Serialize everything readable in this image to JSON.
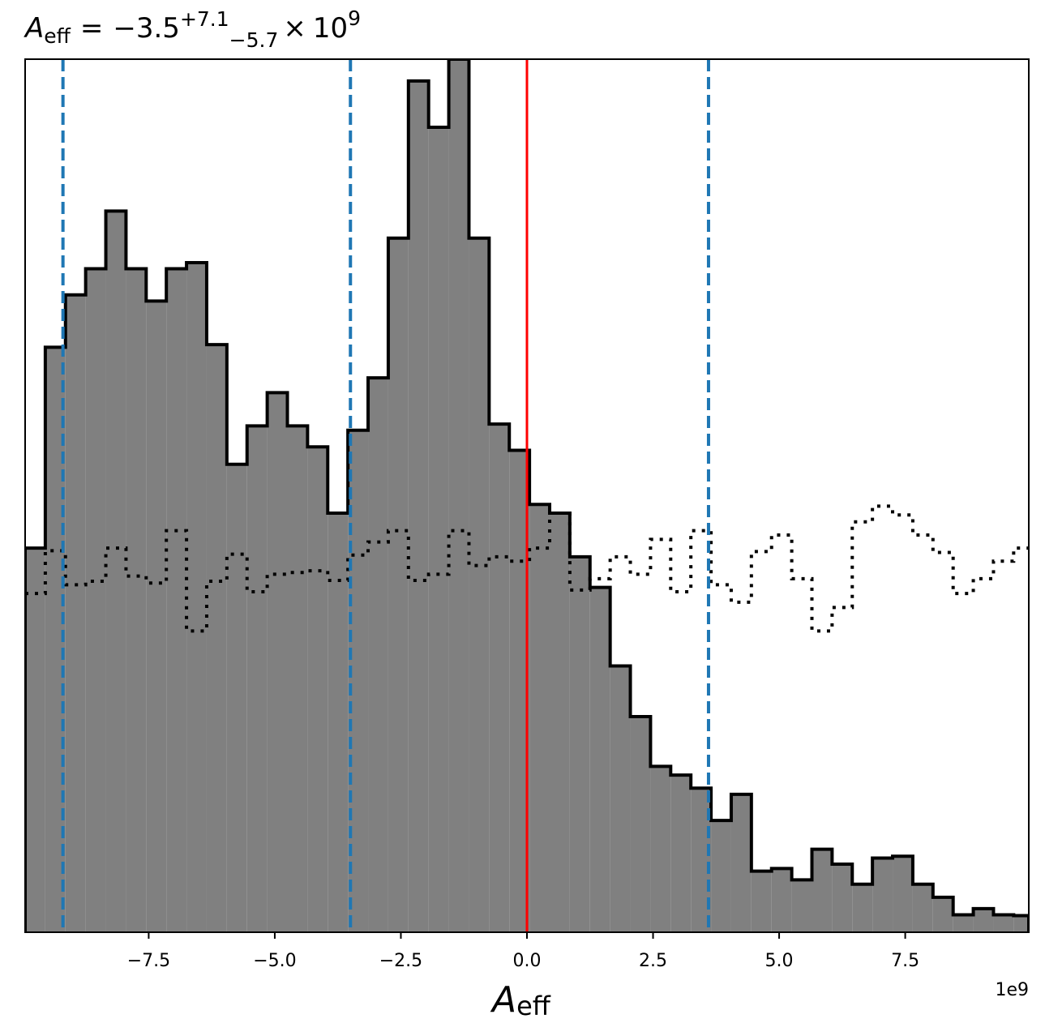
{
  "chart_data": {
    "type": "histogram",
    "title": {
      "symbol": "A",
      "symbol_sub": "eff",
      "equals": "=",
      "value": "−3.5",
      "err_plus": "+7.1",
      "err_minus": "−5.7",
      "times": "×",
      "exp_base": "10",
      "exp": "9"
    },
    "xlabel": {
      "symbol": "A",
      "sub": "eff"
    },
    "x_offset_text": "1e9",
    "xlim": [
      -9950000000.0,
      9950000000.0
    ],
    "ylim": [
      0,
      1
    ],
    "xticks": [
      {
        "value": -7500000000.0,
        "label": "−7.5"
      },
      {
        "value": -5000000000.0,
        "label": "−5.0"
      },
      {
        "value": -2500000000.0,
        "label": "−2.5"
      },
      {
        "value": 0.0,
        "label": "0.0"
      },
      {
        "value": 2500000000.0,
        "label": "2.5"
      },
      {
        "value": 5000000000.0,
        "label": "5.0"
      },
      {
        "value": 7500000000.0,
        "label": "7.5"
      }
    ],
    "grid": false,
    "posterior": {
      "style": "filled-step",
      "fill_color": "#808080",
      "edge_color": "#000000",
      "bin_edges": [
        -9950000000.0,
        -9550000000.0,
        -9150000000.0,
        -8750000000.0,
        -8350000000.0,
        -7950000000.0,
        -7550000000.0,
        -7150000000.0,
        -6750000000.0,
        -6350000000.0,
        -5950000000.0,
        -5550000000.0,
        -5150000000.0,
        -4750000000.0,
        -4350000000.0,
        -3950000000.0,
        -3550000000.0,
        -3150000000.0,
        -2750000000.0,
        -2350000000.0,
        -1950000000.0,
        -1550000000.0,
        -1150000000.0,
        -750000000.0,
        -350000000.0,
        50000000.0,
        450000000.0,
        850000000.0,
        1250000000.0,
        1650000000.0,
        2050000000.0,
        2450000000.0,
        2850000000.0,
        3250000000.0,
        3650000000.0,
        4050000000.0,
        4450000000.0,
        4850000000.0,
        5250000000.0,
        5650000000.0,
        6050000000.0,
        6450000000.0,
        6850000000.0,
        7250000000.0,
        7650000000.0,
        8050000000.0,
        8450000000.0,
        8850000000.0,
        9250000000.0,
        9650000000.0,
        9950000000.0
      ],
      "heights": [
        0.44,
        0.67,
        0.73,
        0.76,
        0.826,
        0.76,
        0.723,
        0.76,
        0.767,
        0.673,
        0.536,
        0.58,
        0.618,
        0.58,
        0.556,
        0.48,
        0.575,
        0.635,
        0.795,
        0.975,
        0.922,
        1.0,
        0.795,
        0.582,
        0.552,
        0.49,
        0.48,
        0.43,
        0.395,
        0.305,
        0.247,
        0.19,
        0.18,
        0.165,
        0.128,
        0.158,
        0.07,
        0.073,
        0.06,
        0.095,
        0.078,
        0.055,
        0.085,
        0.087,
        0.055,
        0.04,
        0.02,
        0.027,
        0.02,
        0.019
      ]
    },
    "prior": {
      "style": "dotted-step",
      "color": "#000000",
      "bin_edges": [
        -9950000000.0,
        -9550000000.0,
        -9150000000.0,
        -8750000000.0,
        -8350000000.0,
        -7950000000.0,
        -7550000000.0,
        -7150000000.0,
        -6750000000.0,
        -6350000000.0,
        -5950000000.0,
        -5550000000.0,
        -5150000000.0,
        -4750000000.0,
        -4350000000.0,
        -3950000000.0,
        -3550000000.0,
        -3150000000.0,
        -2750000000.0,
        -2350000000.0,
        -1950000000.0,
        -1550000000.0,
        -1150000000.0,
        -750000000.0,
        -350000000.0,
        50000000.0,
        450000000.0,
        850000000.0,
        1250000000.0,
        1650000000.0,
        2050000000.0,
        2450000000.0,
        2850000000.0,
        3250000000.0,
        3650000000.0,
        4050000000.0,
        4450000000.0,
        4850000000.0,
        5250000000.0,
        5650000000.0,
        6050000000.0,
        6450000000.0,
        6850000000.0,
        7250000000.0,
        7650000000.0,
        8050000000.0,
        8450000000.0,
        8850000000.0,
        9250000000.0,
        9650000000.0,
        9950000000.0
      ],
      "heights": [
        0.388,
        0.437,
        0.398,
        0.402,
        0.44,
        0.408,
        0.4,
        0.46,
        0.345,
        0.402,
        0.433,
        0.39,
        0.41,
        0.412,
        0.414,
        0.403,
        0.432,
        0.447,
        0.46,
        0.403,
        0.41,
        0.46,
        0.42,
        0.43,
        0.425,
        0.44,
        0.48,
        0.392,
        0.405,
        0.43,
        0.41,
        0.45,
        0.39,
        0.46,
        0.398,
        0.378,
        0.436,
        0.455,
        0.405,
        0.345,
        0.372,
        0.47,
        0.488,
        0.478,
        0.455,
        0.435,
        0.388,
        0.405,
        0.425,
        0.44
      ]
    },
    "vlines": [
      {
        "x": 0.0,
        "color": "#ff0000",
        "style": "solid"
      },
      {
        "x": -9200000000.0,
        "color": "#1f77b4",
        "style": "dashed"
      },
      {
        "x": -3500000000.0,
        "color": "#1f77b4",
        "style": "dashed"
      },
      {
        "x": 3600000000.0,
        "color": "#1f77b4",
        "style": "dashed"
      }
    ],
    "legend": "none"
  }
}
